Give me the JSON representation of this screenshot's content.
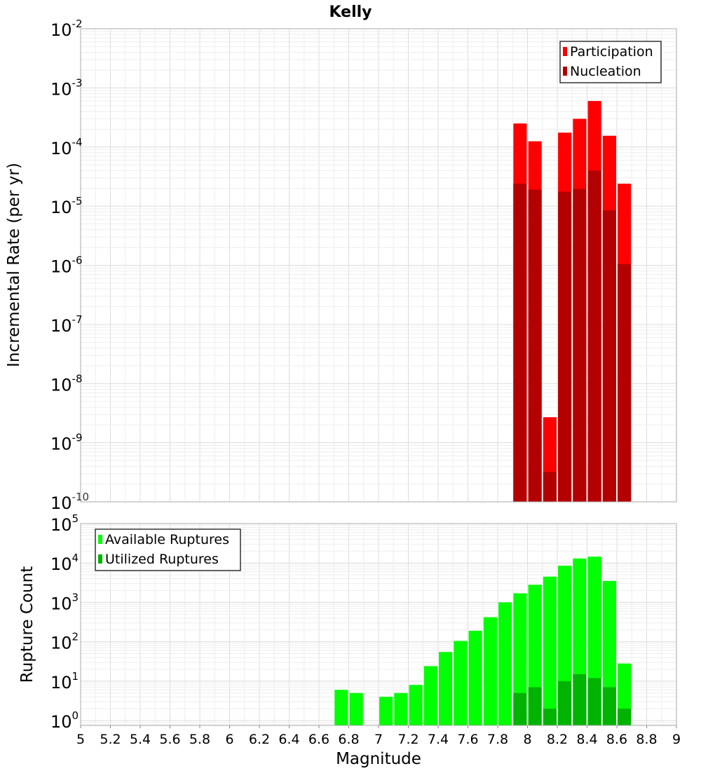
{
  "chart_data": [
    {
      "type": "bar",
      "title": "Kelly",
      "ylabel": "Incremental Rate (per yr)",
      "xlabel": "",
      "yscale": "log",
      "ylim": [
        1e-10,
        0.01
      ],
      "xlim": [
        5,
        9
      ],
      "ytick_exponents": [
        "-10",
        "-9",
        "-8",
        "-7",
        "-6",
        "-5",
        "-4",
        "-3",
        "-2"
      ],
      "ytick_base": "10",
      "legend_position": "top-right",
      "x": [
        7.95,
        8.05,
        8.15,
        8.25,
        8.35,
        8.45,
        8.55,
        8.65
      ],
      "series": [
        {
          "name": "Participation",
          "color": "#ff0000",
          "values": [
            0.00025,
            0.000125,
            2.7e-09,
            0.000175,
            0.0003,
            0.0006,
            0.000155,
            2.4e-05
          ]
        },
        {
          "name": "Nucleation",
          "color": "#b30000",
          "values": [
            2.4e-05,
            1.9e-05,
            3.2e-10,
            1.75e-05,
            1.95e-05,
            4e-05,
            8.5e-06,
            1.05e-06
          ]
        }
      ]
    },
    {
      "type": "bar",
      "title": "",
      "ylabel": "Rupture Count",
      "xlabel": "Magnitude",
      "yscale": "log",
      "ylim": [
        0.75,
        100000
      ],
      "xlim": [
        5,
        9
      ],
      "ytick_exponents": [
        "0",
        "1",
        "2",
        "3",
        "4",
        "5"
      ],
      "ytick_base": "10",
      "xticks": [
        "5",
        "5.2",
        "5.4",
        "5.6",
        "5.8",
        "6",
        "6.2",
        "6.4",
        "6.6",
        "6.8",
        "7",
        "7.2",
        "7.4",
        "7.6",
        "7.8",
        "8",
        "8.2",
        "8.4",
        "8.6",
        "8.8",
        "9"
      ],
      "legend_position": "top-left",
      "series": [
        {
          "name": "Available Ruptures",
          "color": "#00ff00",
          "x": [
            6.75,
            6.85,
            7.05,
            7.15,
            7.25,
            7.35,
            7.45,
            7.55,
            7.65,
            7.75,
            7.85,
            7.95,
            8.05,
            8.15,
            8.25,
            8.35,
            8.45,
            8.55,
            8.65
          ],
          "values": [
            6,
            5,
            4,
            5,
            8,
            24,
            55,
            105,
            190,
            420,
            1000,
            1700,
            2800,
            4500,
            8500,
            13000,
            14500,
            3500,
            28
          ]
        },
        {
          "name": "Utilized Ruptures",
          "color": "#00b300",
          "x": [
            7.95,
            8.05,
            8.15,
            8.25,
            8.35,
            8.45,
            8.55,
            8.65
          ],
          "values": [
            5,
            7,
            2,
            10,
            15,
            12,
            7,
            2
          ]
        }
      ]
    }
  ]
}
